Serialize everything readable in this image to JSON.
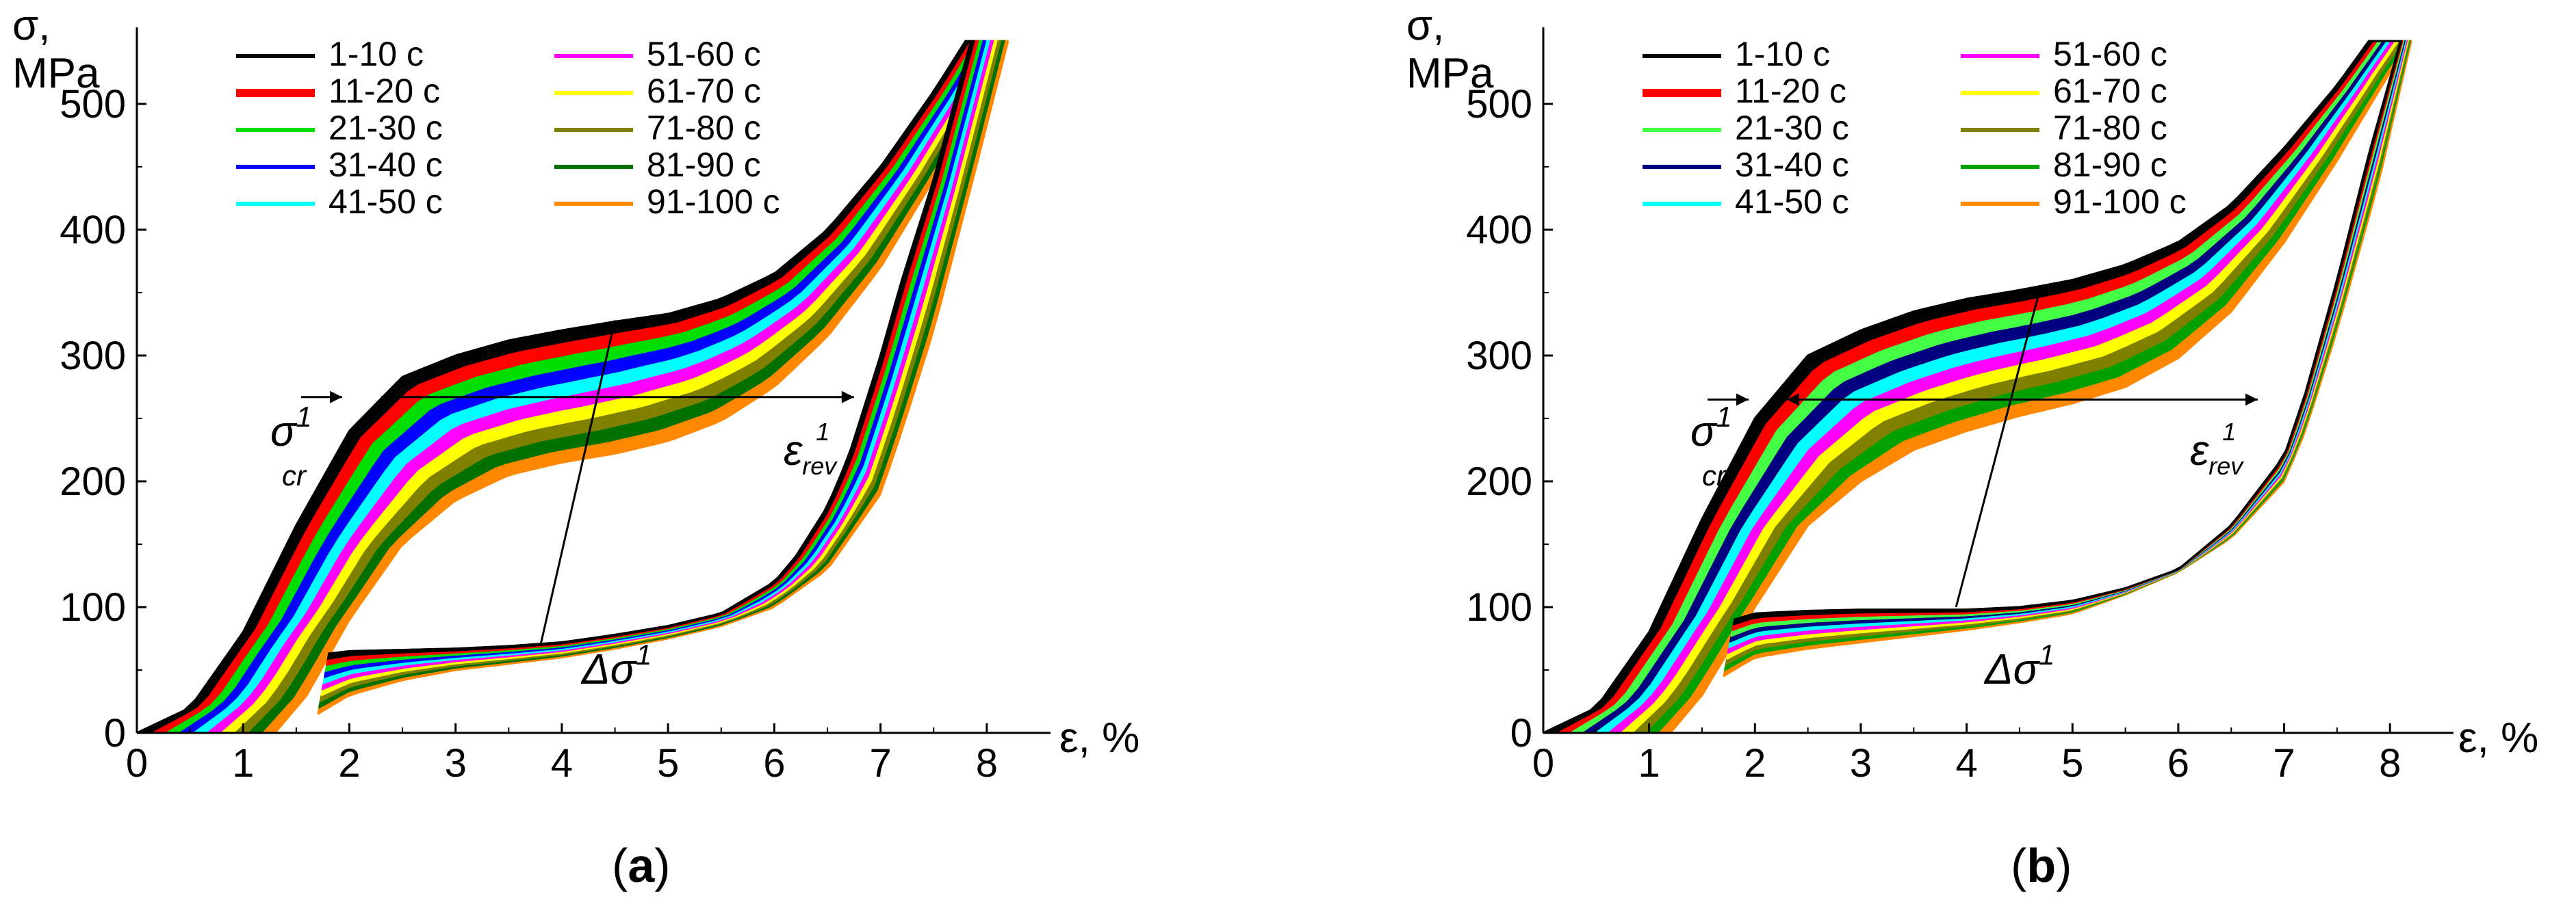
{
  "chart_data": [
    {
      "type": "line",
      "panel_label": "a",
      "title": "",
      "ylabel": "σ,",
      "ylabel2": "MPa",
      "xlabel": "ε, %",
      "xlim": [
        0,
        8.6
      ],
      "ylim": [
        0,
        550
      ],
      "xticks": [
        "0",
        "1",
        "2",
        "3",
        "4",
        "5",
        "6",
        "7",
        "8"
      ],
      "yticks": [
        "0",
        "100",
        "200",
        "300",
        "400",
        "500"
      ],
      "legend_entries": [
        {
          "label": "1-10 c",
          "color": "#000000"
        },
        {
          "label": "11-20 c",
          "color": "#ff0000"
        },
        {
          "label": "21-30 c",
          "color": "#00dd00"
        },
        {
          "label": "31-40 c",
          "color": "#0000ff"
        },
        {
          "label": "41-50 c",
          "color": "#00ffff"
        },
        {
          "label": "51-60 c",
          "color": "#ff00ff"
        },
        {
          "label": "61-70 c",
          "color": "#ffff00"
        },
        {
          "label": "71-80 c",
          "color": "#808000"
        },
        {
          "label": "81-90 c",
          "color": "#007000"
        },
        {
          "label": "91-100 c",
          "color": "#ff8800"
        }
      ],
      "annotations": {
        "sigma_cr": "σ",
        "sigma_cr_sup": "1",
        "sigma_cr_sub": "cr",
        "delta_sigma": "Δσ",
        "delta_sigma_sup": "1",
        "eps_rev": "ε",
        "eps_rev_sub": "rev",
        "eps_rev_sup": "1"
      },
      "sigma_cr_level": 267,
      "series": [
        {
          "name": "first cycle (1-10 c)",
          "color": "#000000",
          "load": [
            [
              0,
              0
            ],
            [
              0.5,
              20
            ],
            [
              1,
              80
            ],
            [
              1.5,
              165
            ],
            [
              2,
              240
            ],
            [
              2.5,
              283
            ],
            [
              3,
              300
            ],
            [
              3.5,
              312
            ],
            [
              4,
              320
            ],
            [
              4.5,
              327
            ],
            [
              5,
              333
            ],
            [
              5.5,
              345
            ],
            [
              6,
              365
            ],
            [
              6.5,
              400
            ],
            [
              7,
              450
            ],
            [
              7.5,
              510
            ],
            [
              7.8,
              550
            ]
          ],
          "unload": [
            [
              7.85,
              550
            ],
            [
              7.5,
              440
            ],
            [
              7.2,
              360
            ],
            [
              7,
              300
            ],
            [
              6.7,
              220
            ],
            [
              6.5,
              180
            ],
            [
              6.2,
              140
            ],
            [
              6,
              120
            ],
            [
              5.5,
              95
            ],
            [
              5,
              85
            ],
            [
              4.5,
              78
            ],
            [
              4,
              72
            ],
            [
              3.5,
              69
            ],
            [
              3,
              67
            ],
            [
              2.5,
              66
            ],
            [
              2,
              65
            ],
            [
              1.8,
              63
            ]
          ]
        },
        {
          "name": "cycles 91-100 c",
          "color": "#ffd000",
          "load": [
            [
              1.3,
              0
            ],
            [
              1.6,
              30
            ],
            [
              2,
              90
            ],
            [
              2.5,
              150
            ],
            [
              3,
              185
            ],
            [
              3.5,
              205
            ],
            [
              4,
              215
            ],
            [
              4.5,
              222
            ],
            [
              5,
              232
            ],
            [
              5.5,
              248
            ],
            [
              6,
              275
            ],
            [
              6.5,
              315
            ],
            [
              7,
              370
            ],
            [
              7.5,
              440
            ],
            [
              8,
              515
            ],
            [
              8.2,
              550
            ]
          ],
          "unload": [
            [
              8.2,
              550
            ],
            [
              7.9,
              450
            ],
            [
              7.5,
              320
            ],
            [
              7.2,
              240
            ],
            [
              7,
              190
            ],
            [
              6.5,
              130
            ],
            [
              6,
              100
            ],
            [
              5.5,
              85
            ],
            [
              5,
              75
            ],
            [
              4.5,
              67
            ],
            [
              4,
              60
            ],
            [
              3.5,
              55
            ],
            [
              3,
              50
            ],
            [
              2.5,
              42
            ],
            [
              2,
              30
            ],
            [
              1.7,
              15
            ]
          ]
        }
      ]
    },
    {
      "type": "line",
      "panel_label": "b",
      "title": "",
      "ylabel": "σ,",
      "ylabel2": "MPa",
      "xlabel": "ε, %",
      "xlim": [
        0,
        8.6
      ],
      "ylim": [
        0,
        550
      ],
      "xticks": [
        "0",
        "1",
        "2",
        "3",
        "4",
        "5",
        "6",
        "7",
        "8"
      ],
      "yticks": [
        "0",
        "100",
        "200",
        "300",
        "400",
        "500"
      ],
      "legend_entries": [
        {
          "label": "1-10 c",
          "color": "#000000"
        },
        {
          "label": "11-20 c",
          "color": "#ff0000"
        },
        {
          "label": "21-30 c",
          "color": "#44ff44"
        },
        {
          "label": "31-40 c",
          "color": "#000080"
        },
        {
          "label": "41-50 c",
          "color": "#00ffff"
        },
        {
          "label": "51-60 c",
          "color": "#ff00ff"
        },
        {
          "label": "61-70 c",
          "color": "#ffff00"
        },
        {
          "label": "71-80 c",
          "color": "#808000"
        },
        {
          "label": "81-90 c",
          "color": "#00a000"
        },
        {
          "label": "91-100 c",
          "color": "#ff8800"
        }
      ],
      "annotations": {
        "sigma_cr": "σ",
        "sigma_cr_sup": "1",
        "sigma_cr_sub": "cr",
        "delta_sigma": "Δσ",
        "delta_sigma_sup": "1",
        "eps_rev": "ε",
        "eps_rev_sub": "rev",
        "eps_rev_sup": "1"
      },
      "sigma_cr_level": 265,
      "series": [
        {
          "name": "first cycle (1-10 c)",
          "color": "#000000",
          "load": [
            [
              0,
              0
            ],
            [
              0.5,
              20
            ],
            [
              1,
              80
            ],
            [
              1.5,
              170
            ],
            [
              2,
              250
            ],
            [
              2.5,
              300
            ],
            [
              3,
              320
            ],
            [
              3.5,
              335
            ],
            [
              4,
              345
            ],
            [
              4.5,
              352
            ],
            [
              5,
              360
            ],
            [
              5.5,
              372
            ],
            [
              6,
              390
            ],
            [
              6.5,
              420
            ],
            [
              7,
              465
            ],
            [
              7.5,
              515
            ],
            [
              7.8,
              550
            ]
          ],
          "unload": [
            [
              8.1,
              550
            ],
            [
              7.8,
              460
            ],
            [
              7.5,
              360
            ],
            [
              7.2,
              270
            ],
            [
              7,
              220
            ],
            [
              6.5,
              165
            ],
            [
              6,
              130
            ],
            [
              5.5,
              115
            ],
            [
              5,
              105
            ],
            [
              4.5,
              100
            ],
            [
              4,
              98
            ],
            [
              3.5,
              98
            ],
            [
              3,
              98
            ],
            [
              2.5,
              97
            ],
            [
              2,
              95
            ],
            [
              1.8,
              90
            ]
          ]
        },
        {
          "name": "cycles 91-100 c",
          "color": "#ff8800",
          "load": [
            [
              1.2,
              0
            ],
            [
              1.5,
              30
            ],
            [
              2,
              100
            ],
            [
              2.5,
              165
            ],
            [
              3,
              200
            ],
            [
              3.5,
              225
            ],
            [
              4,
              240
            ],
            [
              4.5,
              252
            ],
            [
              5,
              262
            ],
            [
              5.5,
              275
            ],
            [
              6,
              298
            ],
            [
              6.5,
              335
            ],
            [
              7,
              390
            ],
            [
              7.5,
              455
            ],
            [
              8,
              525
            ],
            [
              8.2,
              550
            ]
          ],
          "unload": [
            [
              8.2,
              550
            ],
            [
              7.9,
              440
            ],
            [
              7.5,
              320
            ],
            [
              7.2,
              240
            ],
            [
              7,
              200
            ],
            [
              6.5,
              155
            ],
            [
              6,
              128
            ],
            [
              5.5,
              110
            ],
            [
              5,
              95
            ],
            [
              4.5,
              88
            ],
            [
              4,
              82
            ],
            [
              3.5,
              77
            ],
            [
              3,
              72
            ],
            [
              2.5,
              67
            ],
            [
              2,
              60
            ],
            [
              1.7,
              45
            ]
          ]
        }
      ]
    }
  ]
}
